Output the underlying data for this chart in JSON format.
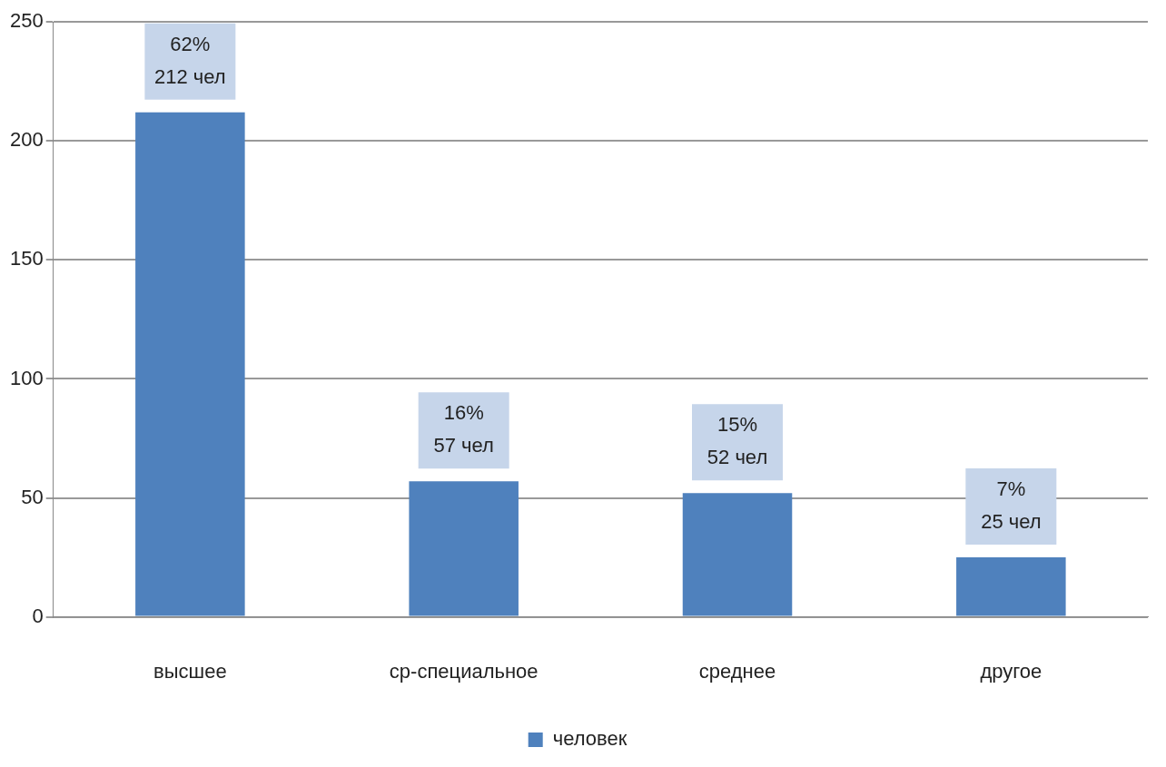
{
  "chart_data": {
    "type": "bar",
    "categories": [
      "высшее",
      "ср-специальное",
      "среднее",
      "другое"
    ],
    "series": [
      {
        "name": "человек",
        "color": "#4f81bd",
        "values": [
          212,
          57,
          52,
          25
        ],
        "value_labels": [
          "62%\n212 чел",
          "16%\n57 чел",
          "15%\n52 чел",
          "7%\n25 чел"
        ]
      }
    ],
    "ylim": [
      0,
      250
    ],
    "yticks": [
      0,
      50,
      100,
      150,
      200,
      250
    ],
    "grid": "y",
    "legend": "bottom"
  }
}
